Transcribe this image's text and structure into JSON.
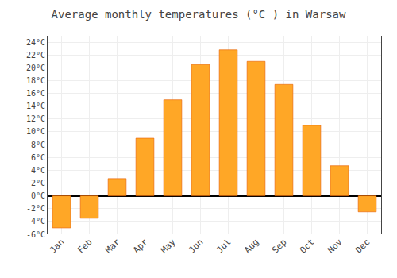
{
  "chart_data": {
    "type": "bar",
    "title": "Average monthly temperatures (°C ) in Warsaw",
    "categories": [
      "Jan",
      "Feb",
      "Mar",
      "Apr",
      "May",
      "Jun",
      "Jul",
      "Aug",
      "Sep",
      "Oct",
      "Nov",
      "Dec"
    ],
    "values": [
      -5.0,
      -3.5,
      2.7,
      9.0,
      15.0,
      20.5,
      22.8,
      21.0,
      17.4,
      11.0,
      4.7,
      -2.5
    ],
    "color": "#FFA726",
    "ylim": [
      -6,
      25
    ],
    "yticks": [
      {
        "value": -6,
        "label": "-6°C"
      },
      {
        "value": -4,
        "label": "-4°C"
      },
      {
        "value": -2,
        "label": "-2°C"
      },
      {
        "value": 0,
        "label": "0°C"
      },
      {
        "value": 2,
        "label": "2°C"
      },
      {
        "value": 4,
        "label": "4°C"
      },
      {
        "value": 6,
        "label": "6°C"
      },
      {
        "value": 8,
        "label": "8°C"
      },
      {
        "value": 10,
        "label": "10°C"
      },
      {
        "value": 12,
        "label": "12°C"
      },
      {
        "value": 14,
        "label": "14°C"
      },
      {
        "value": 16,
        "label": "16°C"
      },
      {
        "value": 18,
        "label": "18°C"
      },
      {
        "value": 20,
        "label": "20°C"
      },
      {
        "value": 22,
        "label": "22°C"
      },
      {
        "value": 24,
        "label": "24°C"
      }
    ],
    "grid": true
  }
}
